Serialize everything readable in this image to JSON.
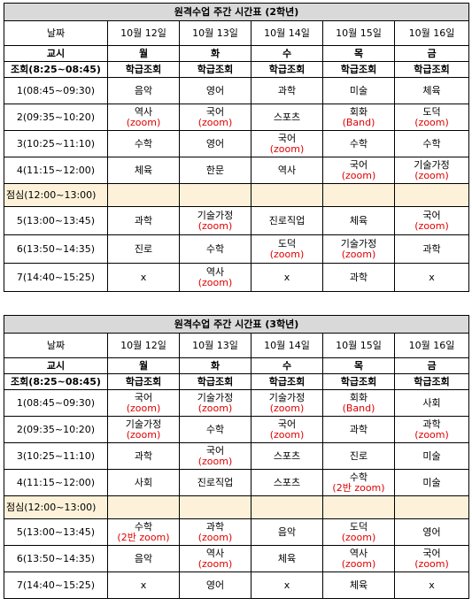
{
  "tables": [
    {
      "title": "원격수업 주간 시간표 (2학년)",
      "date_label": "날짜",
      "dates": [
        "10월 12일",
        "10월 13일",
        "10월 14일",
        "10월 15일",
        "10월 16일"
      ],
      "period_label": "교시",
      "days": [
        "월",
        "화",
        "수",
        "목",
        "금"
      ],
      "homeroom": {
        "label": "조회(8:25~08:45)",
        "cells": [
          "학급조회",
          "학급조회",
          "학급조회",
          "학급조회",
          "학급조회"
        ]
      },
      "rows_am": [
        {
          "label": "1(08:45~09:30)",
          "cells": [
            {
              "s": "음악",
              "n": ""
            },
            {
              "s": "영어",
              "n": ""
            },
            {
              "s": "과학",
              "n": ""
            },
            {
              "s": "미술",
              "n": ""
            },
            {
              "s": "체육",
              "n": ""
            }
          ]
        },
        {
          "label": "2(09:35~10:20)",
          "cells": [
            {
              "s": "역사",
              "n": "(zoom)"
            },
            {
              "s": "국어",
              "n": "(zoom)"
            },
            {
              "s": "스포츠",
              "n": ""
            },
            {
              "s": "회화",
              "n": "(Band)"
            },
            {
              "s": "도덕",
              "n": "(zoom)"
            }
          ]
        },
        {
          "label": "3(10:25~11:10)",
          "cells": [
            {
              "s": "수학",
              "n": ""
            },
            {
              "s": "영어",
              "n": ""
            },
            {
              "s": "국어",
              "n": "(zoom)"
            },
            {
              "s": "수학",
              "n": ""
            },
            {
              "s": "수학",
              "n": ""
            }
          ]
        },
        {
          "label": "4(11:15~12:00)",
          "cells": [
            {
              "s": "체육",
              "n": ""
            },
            {
              "s": "한문",
              "n": ""
            },
            {
              "s": "역사",
              "n": ""
            },
            {
              "s": "국어",
              "n": "(zoom)"
            },
            {
              "s": "기술가정",
              "n": "(zoom)"
            }
          ]
        }
      ],
      "lunch": "점심(12:00~13:00)",
      "rows_pm": [
        {
          "label": "5(13:00~13:45)",
          "cells": [
            {
              "s": "과학",
              "n": ""
            },
            {
              "s": "기술가정",
              "n": "(zoom)"
            },
            {
              "s": "진로직업",
              "n": ""
            },
            {
              "s": "체육",
              "n": ""
            },
            {
              "s": "국어",
              "n": "(zoom)"
            }
          ]
        },
        {
          "label": "6(13:50~14:35)",
          "cells": [
            {
              "s": "진로",
              "n": ""
            },
            {
              "s": "수학",
              "n": ""
            },
            {
              "s": "도덕",
              "n": "(zoom)"
            },
            {
              "s": "기술가정",
              "n": "(zoom)"
            },
            {
              "s": "과학",
              "n": ""
            }
          ]
        },
        {
          "label": "7(14:40~15:25)",
          "cells": [
            {
              "s": "x",
              "n": ""
            },
            {
              "s": "역사",
              "n": "(zoom)"
            },
            {
              "s": "x",
              "n": ""
            },
            {
              "s": "과학",
              "n": ""
            },
            {
              "s": "x",
              "n": ""
            }
          ]
        }
      ]
    },
    {
      "title": "원격수업 주간 시간표 (3학년)",
      "date_label": "날짜",
      "dates": [
        "10월 12일",
        "10월 13일",
        "10월 14일",
        "10월 15일",
        "10월 16일"
      ],
      "period_label": "교시",
      "days": [
        "월",
        "화",
        "수",
        "목",
        "금"
      ],
      "homeroom": {
        "label": "조회(8:25~08:45)",
        "cells": [
          "학급조회",
          "학급조회",
          "학급조회",
          "학급조회",
          "학급조회"
        ]
      },
      "rows_am": [
        {
          "label": "1(08:45~09:30)",
          "cells": [
            {
              "s": "국어",
              "n": "(zoom)"
            },
            {
              "s": "기술가정",
              "n": "(zoom)"
            },
            {
              "s": "기술가정",
              "n": "(zoom)"
            },
            {
              "s": "회화",
              "n": "(Band)"
            },
            {
              "s": "사회",
              "n": ""
            }
          ]
        },
        {
          "label": "2(09:35~10:20)",
          "cells": [
            {
              "s": "기술가정",
              "n": "(zoom)"
            },
            {
              "s": "수학",
              "n": ""
            },
            {
              "s": "국어",
              "n": "(zoom)"
            },
            {
              "s": "과학",
              "n": ""
            },
            {
              "s": "과학",
              "n": "(zoom)"
            }
          ]
        },
        {
          "label": "3(10:25~11:10)",
          "cells": [
            {
              "s": "과학",
              "n": ""
            },
            {
              "s": "국어",
              "n": "(zoom)"
            },
            {
              "s": "스포츠",
              "n": ""
            },
            {
              "s": "진로",
              "n": ""
            },
            {
              "s": "미술",
              "n": ""
            }
          ]
        },
        {
          "label": "4(11:15~12:00)",
          "cells": [
            {
              "s": "사회",
              "n": ""
            },
            {
              "s": "진로직업",
              "n": ""
            },
            {
              "s": "스포츠",
              "n": ""
            },
            {
              "s": "수학",
              "n": "(2반 zoom)"
            },
            {
              "s": "미술",
              "n": ""
            }
          ]
        }
      ],
      "lunch": "점심(12:00~13:00)",
      "rows_pm": [
        {
          "label": "5(13:00~13:45)",
          "cells": [
            {
              "s": "수학",
              "n": "(2반 zoom)"
            },
            {
              "s": "과학",
              "n": "(zoom)"
            },
            {
              "s": "음악",
              "n": ""
            },
            {
              "s": "도덕",
              "n": "(zoom)"
            },
            {
              "s": "영어",
              "n": ""
            }
          ]
        },
        {
          "label": "6(13:50~14:35)",
          "cells": [
            {
              "s": "음악",
              "n": ""
            },
            {
              "s": "역사",
              "n": "(zoom)"
            },
            {
              "s": "체육",
              "n": ""
            },
            {
              "s": "역사",
              "n": "(zoom)"
            },
            {
              "s": "국어",
              "n": "(zoom)"
            }
          ]
        },
        {
          "label": "7(14:40~15:25)",
          "cells": [
            {
              "s": "x",
              "n": ""
            },
            {
              "s": "영어",
              "n": ""
            },
            {
              "s": "x",
              "n": ""
            },
            {
              "s": "체육",
              "n": ""
            },
            {
              "s": "x",
              "n": ""
            }
          ]
        }
      ]
    }
  ]
}
